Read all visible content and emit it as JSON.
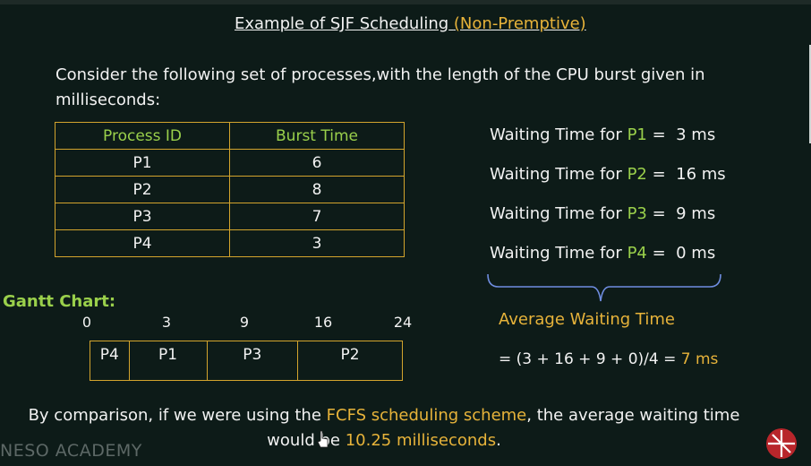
{
  "title": {
    "prefix": "Example of SJF Scheduling",
    "highlight": "(Non-Premptive)"
  },
  "intro": {
    "line1": "Consider the following set of processes,with the length of the CPU burst given in",
    "line2": "milliseconds:"
  },
  "table": {
    "headers": [
      "Process ID",
      "Burst Time"
    ],
    "rows": [
      [
        "P1",
        "6"
      ],
      [
        "P2",
        "8"
      ],
      [
        "P3",
        "7"
      ],
      [
        "P4",
        "3"
      ]
    ]
  },
  "waiting": {
    "prefix": "Waiting Time for",
    "items": [
      {
        "pid": "P1",
        "value": "3 ms"
      },
      {
        "pid": "P2",
        "value": "16 ms"
      },
      {
        "pid": "P3",
        "value": "9 ms"
      },
      {
        "pid": "P4",
        "value": "0 ms"
      }
    ]
  },
  "average": {
    "label": "Average Waiting Time",
    "formula": "= (3 + 16 + 9 + 0)/4 =",
    "result": "7 ms"
  },
  "gantt": {
    "label": "Gantt Chart:",
    "ticks": [
      "0",
      "3",
      "9",
      "16",
      "24"
    ],
    "blocks": [
      {
        "name": "P4",
        "start": 0,
        "end": 3
      },
      {
        "name": "P1",
        "start": 3,
        "end": 9
      },
      {
        "name": "P3",
        "start": 9,
        "end": 16
      },
      {
        "name": "P2",
        "start": 16,
        "end": 24
      }
    ]
  },
  "summary": {
    "part1": "By comparison, if we were using the",
    "highlight1": "FCFS scheduling scheme",
    "part2": ", the average waiting time",
    "part3": "would be",
    "highlight2": "10.25 milliseconds",
    "part4": "."
  },
  "watermark": "NESO ACADEMY",
  "colors": {
    "background": "#0d1b18",
    "accent_yellow": "#e7b33a",
    "accent_green": "#9ad04b",
    "border": "#d3a42d"
  },
  "icons": {
    "logo": "neso-logo-icon",
    "cursor": "mouse-cursor-icon"
  }
}
